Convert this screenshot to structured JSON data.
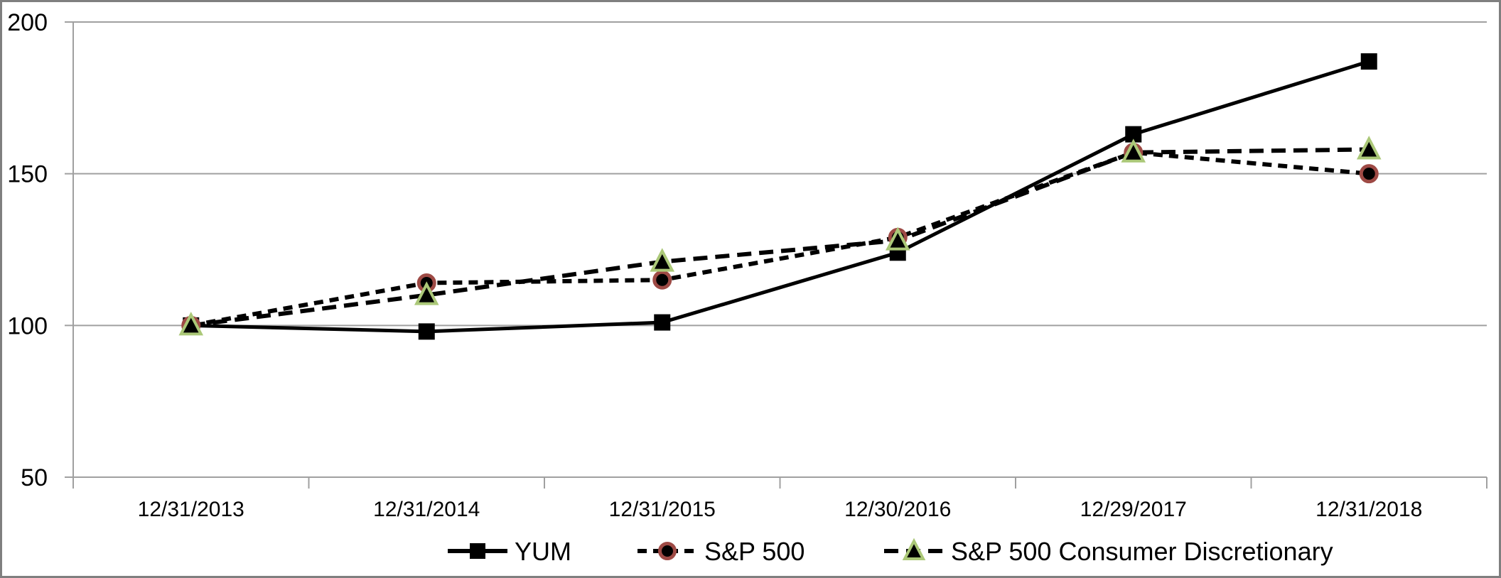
{
  "chart_data": {
    "type": "line",
    "title": "",
    "xlabel": "",
    "ylabel": "",
    "categories": [
      "12/31/2013",
      "12/31/2014",
      "12/31/2015",
      "12/30/2016",
      "12/29/2017",
      "12/31/2018"
    ],
    "series": [
      {
        "name": "YUM",
        "values": [
          100,
          98,
          101,
          124,
          163,
          187
        ],
        "line_style": "solid",
        "marker": "square",
        "line_color": "#000000",
        "marker_fill": "#000000",
        "marker_stroke": "#000000"
      },
      {
        "name": "S&P 500",
        "values": [
          100,
          114,
          115,
          129,
          157,
          150
        ],
        "line_style": "dashed-short",
        "marker": "circle",
        "line_color": "#000000",
        "marker_fill": "#000000",
        "marker_stroke": "#9e4a45"
      },
      {
        "name": "S&P 500 Consumer Discretionary",
        "values": [
          100,
          110,
          121,
          128,
          157,
          158
        ],
        "line_style": "dashed-long",
        "marker": "triangle",
        "line_color": "#000000",
        "marker_fill": "#000000",
        "marker_stroke": "#abc878"
      }
    ],
    "y_ticks": [
      200,
      150,
      100,
      50
    ],
    "ylim": [
      50,
      200
    ],
    "grid": true,
    "legend_position": "bottom",
    "colors": {
      "gridline": "#a0a0a0",
      "axis": "#a0a0a0",
      "frame_border": "#7f7f7f",
      "background": "#ffffff",
      "text": "#000000"
    }
  }
}
